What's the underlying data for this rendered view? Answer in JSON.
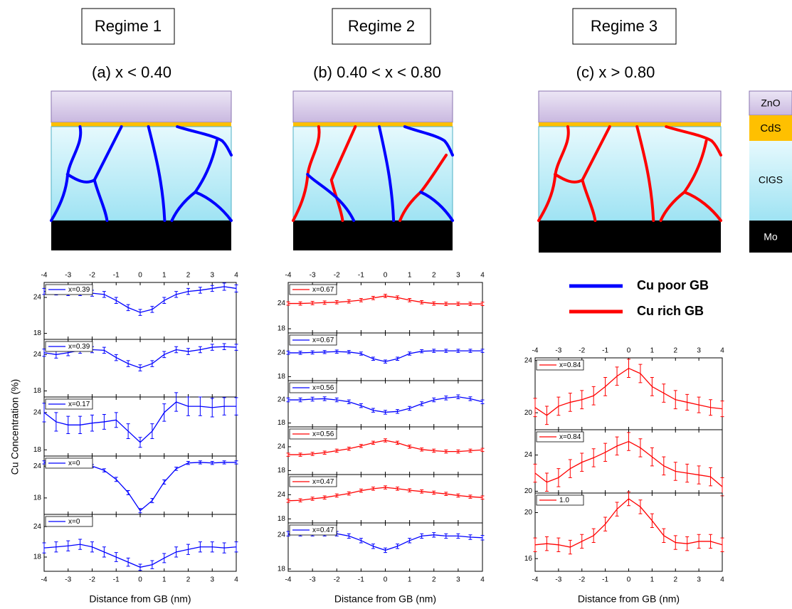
{
  "regimes": [
    {
      "label": "Regime 1",
      "condition": "(a) x < 0.40"
    },
    {
      "label": "Regime 2",
      "condition": "(b) 0.40 < x < 0.80"
    },
    {
      "label": "Regime 3",
      "condition": "(c) x > 0.80"
    }
  ],
  "layers": [
    "ZnO",
    "CdS",
    "CIGS",
    "Mo"
  ],
  "legend": [
    {
      "name": "Cu poor GB",
      "color": "#0000ff"
    },
    {
      "name": "Cu rich GB",
      "color": "#ff0000"
    }
  ],
  "chart_data": [
    {
      "type": "line",
      "xlabel": "Distance from GB (nm)",
      "ylabel": "Cu Concentration (%)",
      "xlim": [
        -4,
        4
      ],
      "xticks": [
        -4,
        -3,
        -2,
        -1,
        0,
        1,
        2,
        3,
        4
      ],
      "x": [
        -4,
        -3.5,
        -3,
        -2.5,
        -2,
        -1.5,
        -1,
        -0.5,
        0,
        0.5,
        1,
        1.5,
        2,
        2.5,
        3,
        3.5,
        4
      ],
      "panels": [
        {
          "ylim": [
            17,
            26.5
          ],
          "yticks": [
            18,
            24
          ],
          "series": [
            {
              "name": "x=0.39",
              "color": "#0000ff",
              "values": [
                25,
                24.9,
                24.8,
                24.8,
                24.7,
                24.5,
                23.5,
                22.3,
                21.5,
                22,
                23.5,
                24.5,
                25,
                25.2,
                25.5,
                25.8,
                25.5
              ],
              "errors": [
                0.5,
                0.5,
                0.5,
                0.5,
                0.5,
                0.5,
                0.5,
                0.5,
                0.5,
                0.5,
                0.5,
                0.5,
                0.5,
                0.5,
                0.5,
                0.6,
                0.6
              ]
            }
          ]
        },
        {
          "ylim": [
            17,
            26.5
          ],
          "yticks": [
            18,
            24
          ],
          "series": [
            {
              "name": "x=0.39",
              "color": "#0000ff",
              "values": [
                24.3,
                24,
                24.3,
                24.7,
                24.8,
                24.7,
                23.5,
                22.5,
                21.8,
                22.5,
                24,
                24.8,
                24.5,
                24.8,
                25.2,
                25.3,
                25.2
              ],
              "errors": [
                0.6,
                0.6,
                0.5,
                0.5,
                0.5,
                0.5,
                0.5,
                0.5,
                0.5,
                0.5,
                0.5,
                0.5,
                0.5,
                0.5,
                0.5,
                0.5,
                0.5
              ]
            }
          ]
        },
        {
          "ylim": [
            17,
            26.5
          ],
          "yticks": [
            18,
            24
          ],
          "series": [
            {
              "name": "x=0.17",
              "color": "#0000ff",
              "values": [
                24,
                22.5,
                22,
                22,
                22.3,
                22.5,
                22.8,
                21,
                19.2,
                21,
                24,
                25.7,
                25,
                25,
                24.8,
                25,
                25
              ],
              "errors": [
                1.5,
                1.5,
                1.4,
                1.4,
                1.3,
                1.2,
                1.2,
                1.2,
                0.8,
                1.2,
                1.4,
                1.5,
                1.5,
                1.5,
                1.5,
                1.4,
                1.4
              ]
            }
          ]
        },
        {
          "ylim": [
            14.9,
            25.9
          ],
          "yticks": [
            18,
            24
          ],
          "series": [
            {
              "name": "x=0",
              "color": "#0000ff",
              "values": [
                24.7,
                24.6,
                24.5,
                24.4,
                24,
                23.2,
                21.5,
                19,
                15.6,
                17.5,
                21,
                23.5,
                24.6,
                24.7,
                24.6,
                24.7,
                24.7
              ],
              "errors": [
                0.3,
                0.3,
                0.3,
                0.3,
                0.3,
                0.3,
                0.4,
                0.4,
                0.4,
                0.4,
                0.4,
                0.3,
                0.3,
                0.3,
                0.3,
                0.3,
                0.3
              ]
            }
          ]
        },
        {
          "ylim": [
            15.2,
            26.4
          ],
          "yticks": [
            18,
            24
          ],
          "series": [
            {
              "name": "x=0",
              "color": "#0000ff",
              "values": [
                19.8,
                20,
                20.2,
                20.5,
                20,
                19,
                18,
                17,
                16,
                16.5,
                17.8,
                19,
                19.5,
                20,
                20,
                19.8,
                20
              ],
              "errors": [
                1,
                1,
                1,
                1,
                1,
                1,
                0.9,
                0.8,
                0.6,
                0.8,
                0.9,
                1,
                1,
                1,
                1,
                1,
                1
              ]
            }
          ]
        }
      ]
    },
    {
      "type": "line",
      "xlabel": "Distance from GB (nm)",
      "xlim": [
        -4,
        4
      ],
      "xticks": [
        -4,
        -3,
        -2,
        -1,
        0,
        1,
        2,
        3,
        4
      ],
      "x": [
        -4,
        -3.5,
        -3,
        -2.5,
        -2,
        -1.5,
        -1,
        -0.5,
        0,
        0.5,
        1,
        1.5,
        2,
        2.5,
        3,
        3.5,
        4
      ],
      "panels": [
        {
          "ylim": [
            17,
            29
          ],
          "yticks": [
            18,
            24
          ],
          "series": [
            {
              "name": "x=0.67",
              "color": "#ff0000",
              "values": [
                24,
                24,
                24.1,
                24.2,
                24.3,
                24.5,
                24.8,
                25.3,
                25.8,
                25.4,
                24.8,
                24.3,
                24,
                23.9,
                23.9,
                23.9,
                23.9
              ],
              "errors": [
                0.4,
                0.4,
                0.4,
                0.4,
                0.4,
                0.4,
                0.4,
                0.4,
                0.4,
                0.4,
                0.4,
                0.4,
                0.4,
                0.4,
                0.4,
                0.4,
                0.4
              ]
            }
          ]
        },
        {
          "ylim": [
            17,
            29
          ],
          "yticks": [
            18,
            24
          ],
          "series": [
            {
              "name": "x=0.67",
              "color": "#0000ff",
              "values": [
                24,
                24,
                24.1,
                24.2,
                24.3,
                24.2,
                23.8,
                22.5,
                21.8,
                22.5,
                23.8,
                24.4,
                24.5,
                24.5,
                24.5,
                24.5,
                24.5
              ],
              "errors": [
                0.4,
                0.4,
                0.4,
                0.4,
                0.4,
                0.4,
                0.4,
                0.4,
                0.4,
                0.4,
                0.4,
                0.4,
                0.4,
                0.4,
                0.4,
                0.4,
                0.4
              ]
            }
          ]
        },
        {
          "ylim": [
            17,
            29
          ],
          "yticks": [
            18,
            24
          ],
          "series": [
            {
              "name": "x=0.56",
              "color": "#0000ff",
              "values": [
                24,
                24,
                24.2,
                24.3,
                24,
                23.5,
                22.5,
                21.3,
                20.8,
                21,
                21.8,
                23,
                24,
                24.5,
                24.8,
                24.3,
                23.5
              ],
              "errors": [
                0.5,
                0.5,
                0.5,
                0.5,
                0.5,
                0.5,
                0.5,
                0.5,
                0.5,
                0.5,
                0.5,
                0.5,
                0.5,
                0.5,
                0.5,
                0.5,
                0.5
              ]
            }
          ]
        },
        {
          "ylim": [
            17,
            29
          ],
          "yticks": [
            18,
            24
          ],
          "series": [
            {
              "name": "x=0.56",
              "color": "#ff0000",
              "values": [
                22,
                22,
                22.2,
                22.5,
                23,
                23.5,
                24.2,
                25,
                25.6,
                25,
                24,
                23.3,
                23,
                22.8,
                22.8,
                23,
                23.2
              ],
              "errors": [
                0.4,
                0.4,
                0.4,
                0.4,
                0.4,
                0.4,
                0.4,
                0.4,
                0.4,
                0.4,
                0.4,
                0.4,
                0.4,
                0.4,
                0.4,
                0.4,
                0.4
              ]
            }
          ]
        },
        {
          "ylim": [
            17,
            29
          ],
          "yticks": [
            18,
            24
          ],
          "series": [
            {
              "name": "x=0.47",
              "color": "#ff0000",
              "values": [
                22.5,
                22.6,
                23,
                23.3,
                23.8,
                24.3,
                25,
                25.5,
                25.8,
                25.5,
                25.1,
                24.8,
                24.5,
                24.2,
                23.8,
                23.5,
                23.3
              ],
              "errors": [
                0.4,
                0.4,
                0.4,
                0.4,
                0.4,
                0.4,
                0.4,
                0.4,
                0.4,
                0.4,
                0.4,
                0.4,
                0.4,
                0.4,
                0.4,
                0.4,
                0.4
              ]
            }
          ]
        },
        {
          "ylim": [
            17.6,
            26.1
          ],
          "yticks": [
            18,
            24
          ],
          "series": [
            {
              "name": "x=0.47",
              "color": "#0000ff",
              "values": [
                24.2,
                24.2,
                24.2,
                24.2,
                24.2,
                23.8,
                23,
                22,
                21.3,
                22,
                23,
                23.8,
                24,
                23.8,
                23.8,
                23.6,
                23.5
              ],
              "errors": [
                0.4,
                0.4,
                0.4,
                0.4,
                0.4,
                0.4,
                0.4,
                0.4,
                0.4,
                0.4,
                0.4,
                0.4,
                0.4,
                0.4,
                0.4,
                0.4,
                0.4
              ]
            }
          ]
        }
      ]
    },
    {
      "type": "line",
      "xlabel": "Distance from GB (nm)",
      "xlim": [
        -4,
        4
      ],
      "xticks": [
        -4,
        -3,
        -2,
        -1,
        0,
        1,
        2,
        3,
        4
      ],
      "x": [
        -4,
        -3.5,
        -3,
        -2.5,
        -2,
        -1.5,
        -1,
        -0.5,
        0,
        0.5,
        1,
        1.5,
        2,
        2.5,
        3,
        3.5,
        4
      ],
      "panels": [
        {
          "ylim": [
            18.7,
            24.2
          ],
          "yticks": [
            20,
            24
          ],
          "series": [
            {
              "name": "x=0.84",
              "color": "#ff0000",
              "values": [
                20.4,
                19.8,
                20.5,
                20.8,
                21,
                21.3,
                22,
                22.8,
                23.4,
                23,
                22,
                21.5,
                21,
                20.8,
                20.6,
                20.4,
                20.3
              ],
              "errors": [
                0.7,
                0.7,
                0.7,
                0.7,
                0.7,
                0.7,
                0.7,
                0.7,
                0.7,
                0.7,
                0.7,
                0.7,
                0.7,
                0.6,
                0.6,
                0.6,
                0.6
              ]
            }
          ]
        },
        {
          "ylim": [
            19.8,
            26.8
          ],
          "yticks": [
            20,
            24
          ],
          "series": [
            {
              "name": "x=0.84",
              "color": "#ff0000",
              "values": [
                22,
                21,
                21.5,
                22.5,
                23.2,
                23.7,
                24.3,
                25,
                25.5,
                24.8,
                23.8,
                22.8,
                22.2,
                22,
                21.8,
                21.6,
                20.5
              ],
              "errors": [
                1,
                1,
                1,
                1,
                1,
                1,
                1,
                1,
                1,
                1,
                1,
                1,
                1,
                1,
                1,
                1,
                1
              ]
            }
          ]
        },
        {
          "ylim": [
            14.9,
            21.7
          ],
          "yticks": [
            16,
            20
          ],
          "series": [
            {
              "name": "1.0",
              "color": "#ff0000",
              "values": [
                17.2,
                17.3,
                17.2,
                17,
                17.5,
                18,
                19,
                20.3,
                21.2,
                20.5,
                19.3,
                18,
                17.4,
                17.3,
                17.5,
                17.5,
                17.2
              ],
              "errors": [
                0.6,
                0.6,
                0.6,
                0.6,
                0.6,
                0.6,
                0.6,
                0.6,
                0.6,
                0.6,
                0.6,
                0.6,
                0.6,
                0.6,
                0.6,
                0.6,
                0.6
              ]
            }
          ]
        }
      ]
    }
  ]
}
